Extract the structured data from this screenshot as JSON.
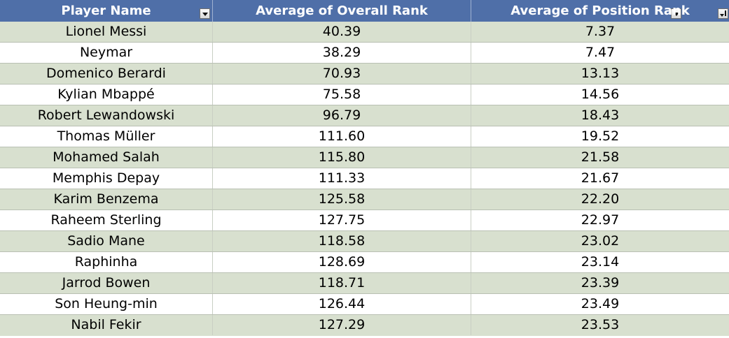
{
  "table": {
    "headers": [
      {
        "label": "Player Name"
      },
      {
        "label": "Average of Overall Rank"
      },
      {
        "label": "Average of Position Rank"
      }
    ],
    "rows": [
      {
        "name": "Lionel Messi",
        "overall": "40.39",
        "position": "7.37"
      },
      {
        "name": "Neymar",
        "overall": "38.29",
        "position": "7.47"
      },
      {
        "name": "Domenico Berardi",
        "overall": "70.93",
        "position": "13.13"
      },
      {
        "name": "Kylian Mbappé",
        "overall": "75.58",
        "position": "14.56"
      },
      {
        "name": "Robert Lewandowski",
        "overall": "96.79",
        "position": "18.43"
      },
      {
        "name": "Thomas Müller",
        "overall": "111.60",
        "position": "19.52"
      },
      {
        "name": "Mohamed Salah",
        "overall": "115.80",
        "position": "21.58"
      },
      {
        "name": "Memphis Depay",
        "overall": "111.33",
        "position": "21.67"
      },
      {
        "name": "Karim Benzema",
        "overall": "125.58",
        "position": "22.20"
      },
      {
        "name": "Raheem Sterling",
        "overall": "127.75",
        "position": "22.97"
      },
      {
        "name": "Sadio Mane",
        "overall": "118.58",
        "position": "23.02"
      },
      {
        "name": "Raphinha",
        "overall": "128.69",
        "position": "23.14"
      },
      {
        "name": "Jarrod Bowen",
        "overall": "118.71",
        "position": "23.39"
      },
      {
        "name": "Son Heung-min",
        "overall": "126.44",
        "position": "23.49"
      },
      {
        "name": "Nabil Fekir",
        "overall": "127.29",
        "position": "23.53"
      }
    ]
  },
  "colors": {
    "header_bg": "#4f6fa8",
    "band_shade": "#d8e0cf",
    "band_plain": "#ffffff"
  },
  "icons": {
    "col1_filter": "dropdown-arrow-icon",
    "col2_filter": "dropdown-arrow-icon",
    "col3_filter": "sort-descending-icon"
  }
}
